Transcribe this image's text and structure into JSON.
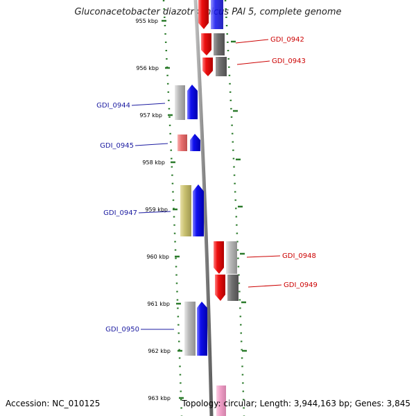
{
  "title": "Gluconacetobacter diazotrophicus PAl 5, complete genome",
  "accession": "Accession: NC_010125",
  "topology": "Topology: circular; Length: 3,944,163 bp; Genes: 3,845",
  "colors": {
    "backbone": "#888888",
    "ruler": "#2a7a2a",
    "left_label": "#1a1aa0",
    "right_label": "#cc0000",
    "blue_gene": "#1010ee",
    "red_gene": "#ee1010",
    "gray_gene": "#b8b8b8",
    "dark_gray_gene": "#707070",
    "salmon_gene": "#e87070",
    "olive_gene": "#c8c070",
    "pink_gene": "#f0a0c8"
  },
  "kbp_labels": [
    "955 kbp",
    "956 kbp",
    "957 kbp",
    "958 kbp",
    "959 kbp",
    "960 kbp",
    "961 kbp",
    "962 kbp",
    "963 kbp"
  ],
  "gene_labels": [
    {
      "text": "GDI_0942",
      "side": "right"
    },
    {
      "text": "GDI_0943",
      "side": "right"
    },
    {
      "text": "GDI_0944",
      "side": "left"
    },
    {
      "text": "GDI_0945",
      "side": "left"
    },
    {
      "text": "GDI_0947",
      "side": "left"
    },
    {
      "text": "GDI_0948",
      "side": "right"
    },
    {
      "text": "GDI_0949",
      "side": "right"
    },
    {
      "text": "GDI_0950",
      "side": "left"
    }
  ]
}
